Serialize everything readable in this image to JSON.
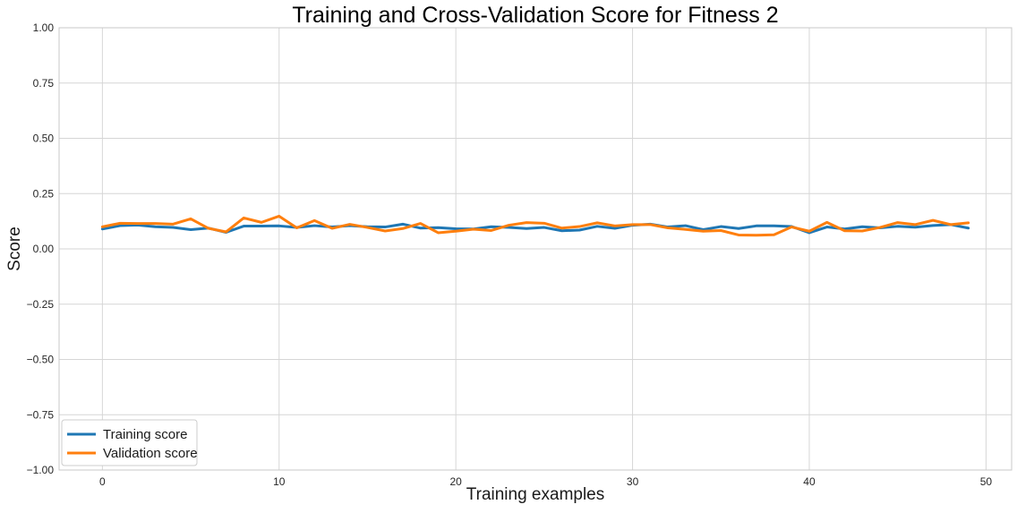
{
  "chart_data": {
    "type": "line",
    "title": "Training and Cross-Validation Score for Fitness 2",
    "xlabel": "Training examples",
    "ylabel": "Score",
    "xlim": [
      -2.45,
      51.45
    ],
    "ylim": [
      -1.0,
      1.0
    ],
    "xticks": [
      0,
      10,
      20,
      30,
      40,
      50
    ],
    "xtick_labels": [
      "0",
      "10",
      "20",
      "30",
      "40",
      "50"
    ],
    "yticks": [
      -1.0,
      -0.75,
      -0.5,
      -0.25,
      0.0,
      0.25,
      0.5,
      0.75,
      1.0
    ],
    "ytick_labels": [
      "−1.00",
      "−0.75",
      "−0.50",
      "−0.25",
      "0.00",
      "0.25",
      "0.50",
      "0.75",
      "1.00"
    ],
    "grid": true,
    "legend_position": "lower-left",
    "x": [
      0,
      1,
      2,
      3,
      4,
      5,
      6,
      7,
      8,
      9,
      10,
      11,
      12,
      13,
      14,
      15,
      16,
      17,
      18,
      19,
      20,
      21,
      22,
      23,
      24,
      25,
      26,
      27,
      28,
      29,
      30,
      31,
      32,
      33,
      34,
      35,
      36,
      37,
      38,
      39,
      40,
      41,
      42,
      43,
      44,
      45,
      46,
      47,
      48,
      49
    ],
    "series": [
      {
        "name": "Training score",
        "color": "#1f77b4",
        "values": [
          0.09,
          0.105,
          0.108,
          0.1,
          0.097,
          0.087,
          0.094,
          0.075,
          0.103,
          0.103,
          0.104,
          0.097,
          0.105,
          0.099,
          0.105,
          0.1,
          0.099,
          0.112,
          0.094,
          0.096,
          0.091,
          0.09,
          0.1,
          0.097,
          0.092,
          0.097,
          0.082,
          0.085,
          0.102,
          0.093,
          0.107,
          0.112,
          0.099,
          0.105,
          0.087,
          0.101,
          0.092,
          0.104,
          0.104,
          0.101,
          0.073,
          0.099,
          0.09,
          0.1,
          0.095,
          0.102,
          0.098,
          0.106,
          0.11,
          0.094
        ]
      },
      {
        "name": "Validation score",
        "color": "#ff7f0e",
        "values": [
          0.1,
          0.116,
          0.115,
          0.115,
          0.112,
          0.136,
          0.093,
          0.077,
          0.14,
          0.12,
          0.148,
          0.095,
          0.128,
          0.093,
          0.111,
          0.097,
          0.081,
          0.092,
          0.115,
          0.073,
          0.08,
          0.089,
          0.083,
          0.107,
          0.119,
          0.116,
          0.094,
          0.101,
          0.118,
          0.104,
          0.11,
          0.11,
          0.095,
          0.088,
          0.08,
          0.083,
          0.063,
          0.062,
          0.064,
          0.099,
          0.08,
          0.12,
          0.082,
          0.081,
          0.097,
          0.119,
          0.11,
          0.129,
          0.11,
          0.118
        ]
      }
    ]
  }
}
